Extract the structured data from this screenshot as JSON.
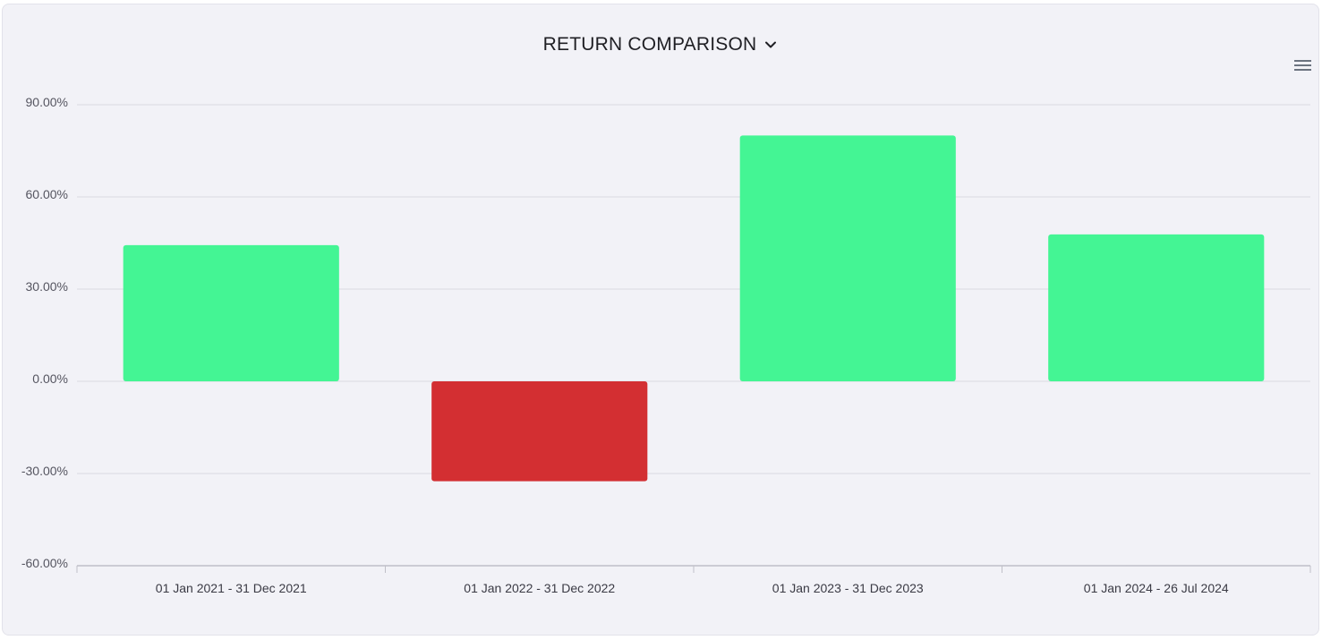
{
  "header": {
    "title": "RETURN COMPARISON",
    "dropdown_icon": "chevron-down-icon",
    "menu_icon": "hamburger-menu-icon"
  },
  "colors": {
    "positive": "#44f594",
    "negative": "#d32f32",
    "grid": "#dadae2",
    "axis": "#c0c0c8"
  },
  "chart_data": {
    "type": "bar",
    "title": "RETURN COMPARISON",
    "xlabel": "",
    "ylabel": "",
    "categories": [
      "01 Jan 2021 - 31 Dec 2021",
      "01 Jan 2022 - 31 Dec 2022",
      "01 Jan 2023 - 31 Dec 2023",
      "01 Jan 2024 - 26 Jul 2024"
    ],
    "values": [
      44.3,
      -32.5,
      80.0,
      47.8
    ],
    "ylim": [
      -60,
      90
    ],
    "yticks": [
      90,
      60,
      30,
      0,
      -30,
      -60
    ],
    "ytick_labels": [
      "90.00%",
      "60.00%",
      "30.00%",
      "0.00%",
      "-30.00%",
      "-60.00%"
    ],
    "grid": true,
    "legend": "none"
  }
}
